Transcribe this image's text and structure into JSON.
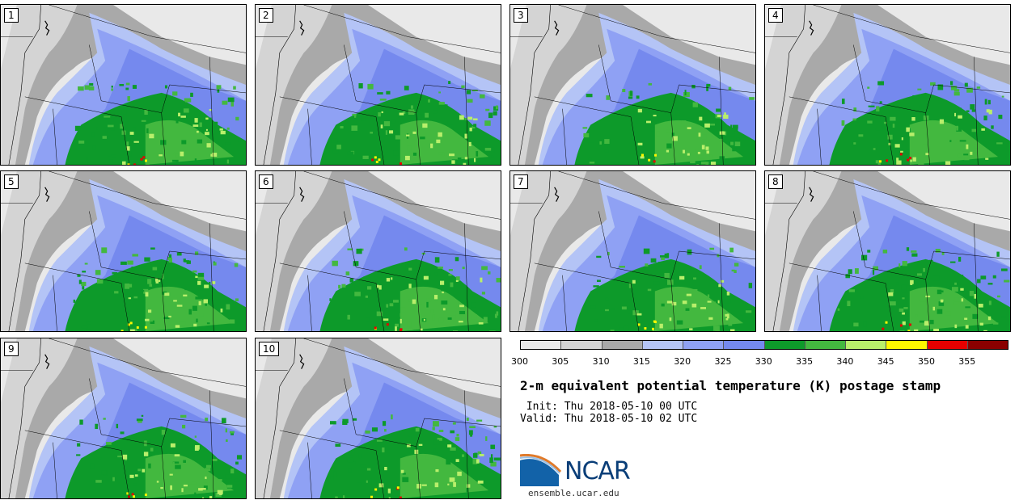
{
  "panels": [
    {
      "num": "1"
    },
    {
      "num": "2"
    },
    {
      "num": "3"
    },
    {
      "num": "4"
    },
    {
      "num": "5"
    },
    {
      "num": "6"
    },
    {
      "num": "7"
    },
    {
      "num": "8"
    },
    {
      "num": "9"
    },
    {
      "num": "10"
    }
  ],
  "colorbar": {
    "colors": [
      "#e9e9e9",
      "#d4d4d4",
      "#a9a9a9",
      "#b4c4f6",
      "#8fa1f4",
      "#7589ee",
      "#0d9a2a",
      "#43b83f",
      "#b9ef6b",
      "#fdf700",
      "#e60000",
      "#8a0000"
    ],
    "labels": [
      "300",
      "305",
      "310",
      "315",
      "320",
      "325",
      "330",
      "335",
      "340",
      "345",
      "350",
      "355"
    ]
  },
  "title": "2-m equivalent potential temperature (K) postage stamp",
  "init": " Init: Thu 2018-05-10 00 UTC",
  "valid": "Valid: Thu 2018-05-10 02 UTC",
  "logo": {
    "text": "NCAR",
    "site": "ensemble.ucar.edu"
  }
}
